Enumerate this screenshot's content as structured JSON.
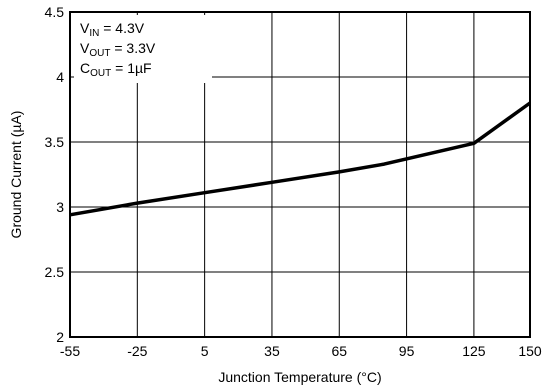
{
  "chart_data": {
    "type": "line",
    "title": "",
    "xlabel": "Junction Temperature (°C)",
    "ylabel": "Ground Current (µA)",
    "xlim": [
      -55,
      150
    ],
    "ylim": [
      2,
      4.5
    ],
    "x_ticks": [
      -55,
      -25,
      5,
      35,
      65,
      95,
      125,
      150
    ],
    "y_ticks": [
      2,
      2.5,
      3,
      3.5,
      4,
      4.5
    ],
    "x_tick_labels": [
      "-55",
      "-25",
      "5",
      "35",
      "65",
      "95",
      "125",
      "150"
    ],
    "y_tick_labels": [
      "2",
      "2.5",
      "3",
      "3.5",
      "4",
      "4.5"
    ],
    "grid": true,
    "legend_placement": "top-left",
    "legend": {
      "line1": {
        "main": "V",
        "sub": "IN",
        "rest": " = 4.3V"
      },
      "line2": {
        "main": "V",
        "sub": "OUT",
        "rest": " = 3.3V"
      },
      "line3": {
        "main": "C",
        "sub": "OUT",
        "rest": " = 1µF"
      }
    },
    "series": [
      {
        "color": "#000000",
        "x": [
          -55,
          -25,
          5,
          35,
          65,
          85,
          125,
          150
        ],
        "y": [
          2.94,
          3.03,
          3.11,
          3.19,
          3.27,
          3.33,
          3.49,
          3.8
        ]
      }
    ]
  }
}
